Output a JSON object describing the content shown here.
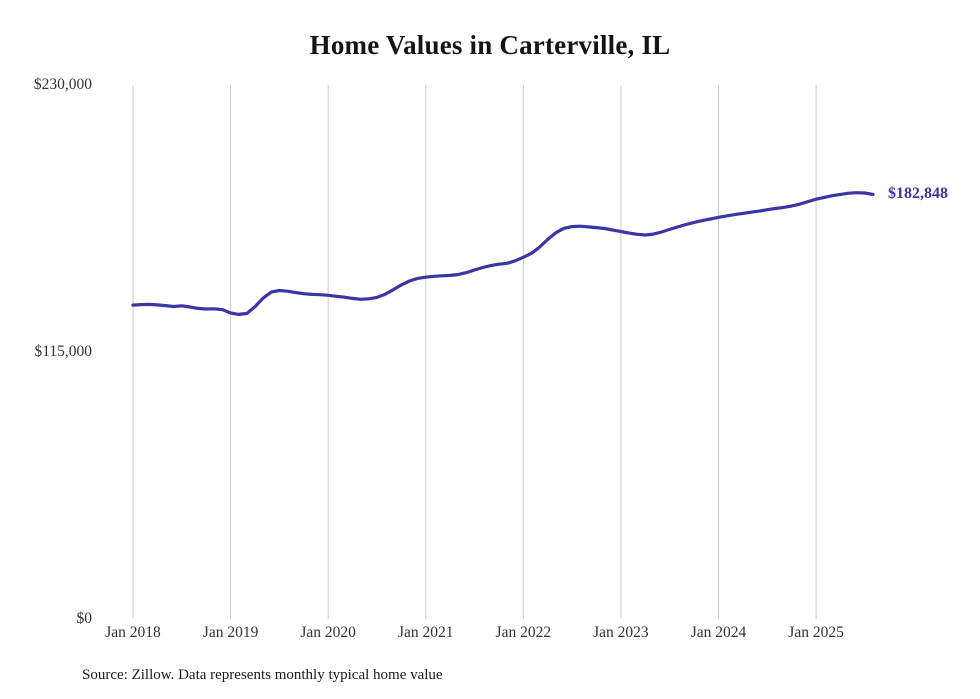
{
  "page": {
    "source_note": "Source: Zillow. Data represents monthly typical home value"
  },
  "chart_data": {
    "type": "line",
    "title": "Home Values in Carterville, IL",
    "series_name": "Monthly typical home value",
    "x_start_month": "Jan 2018",
    "x_end_month": "Aug 2025",
    "x_tick_labels": [
      "Jan 2018",
      "Jan 2019",
      "Jan 2020",
      "Jan 2021",
      "Jan 2022",
      "Jan 2023",
      "Jan 2024",
      "Jan 2025"
    ],
    "y_tick_labels": [
      "$230,000",
      "$115,000",
      "$0"
    ],
    "y_tick_values": [
      230000,
      115000,
      0
    ],
    "ylim": [
      0,
      230000
    ],
    "grid": "vertical-only",
    "legend": "none",
    "line_color": "#3b35a5",
    "end_label": "$182,848",
    "end_value": 182848,
    "values": [
      135200,
      135400,
      135500,
      135300,
      135000,
      134600,
      134900,
      134400,
      133800,
      133500,
      133600,
      133200,
      131800,
      131200,
      131600,
      134500,
      138200,
      140800,
      141500,
      141200,
      140600,
      140100,
      139800,
      139700,
      139400,
      139000,
      138600,
      138100,
      137700,
      137900,
      138500,
      139900,
      141800,
      143900,
      145600,
      146700,
      147200,
      147600,
      147800,
      148000,
      148400,
      149200,
      150300,
      151400,
      152200,
      152800,
      153200,
      154300,
      155800,
      157500,
      160200,
      163500,
      166400,
      168300,
      169000,
      169200,
      168900,
      168600,
      168200,
      167500,
      166900,
      166200,
      165700,
      165400,
      165800,
      166700,
      167800,
      168900,
      169900,
      170800,
      171600,
      172300,
      173000,
      173600,
      174200,
      174700,
      175200,
      175700,
      176300,
      176800,
      177300,
      177900,
      178700,
      179800,
      180800,
      181600,
      182300,
      182900,
      183400,
      183600,
      183500,
      182848
    ]
  }
}
